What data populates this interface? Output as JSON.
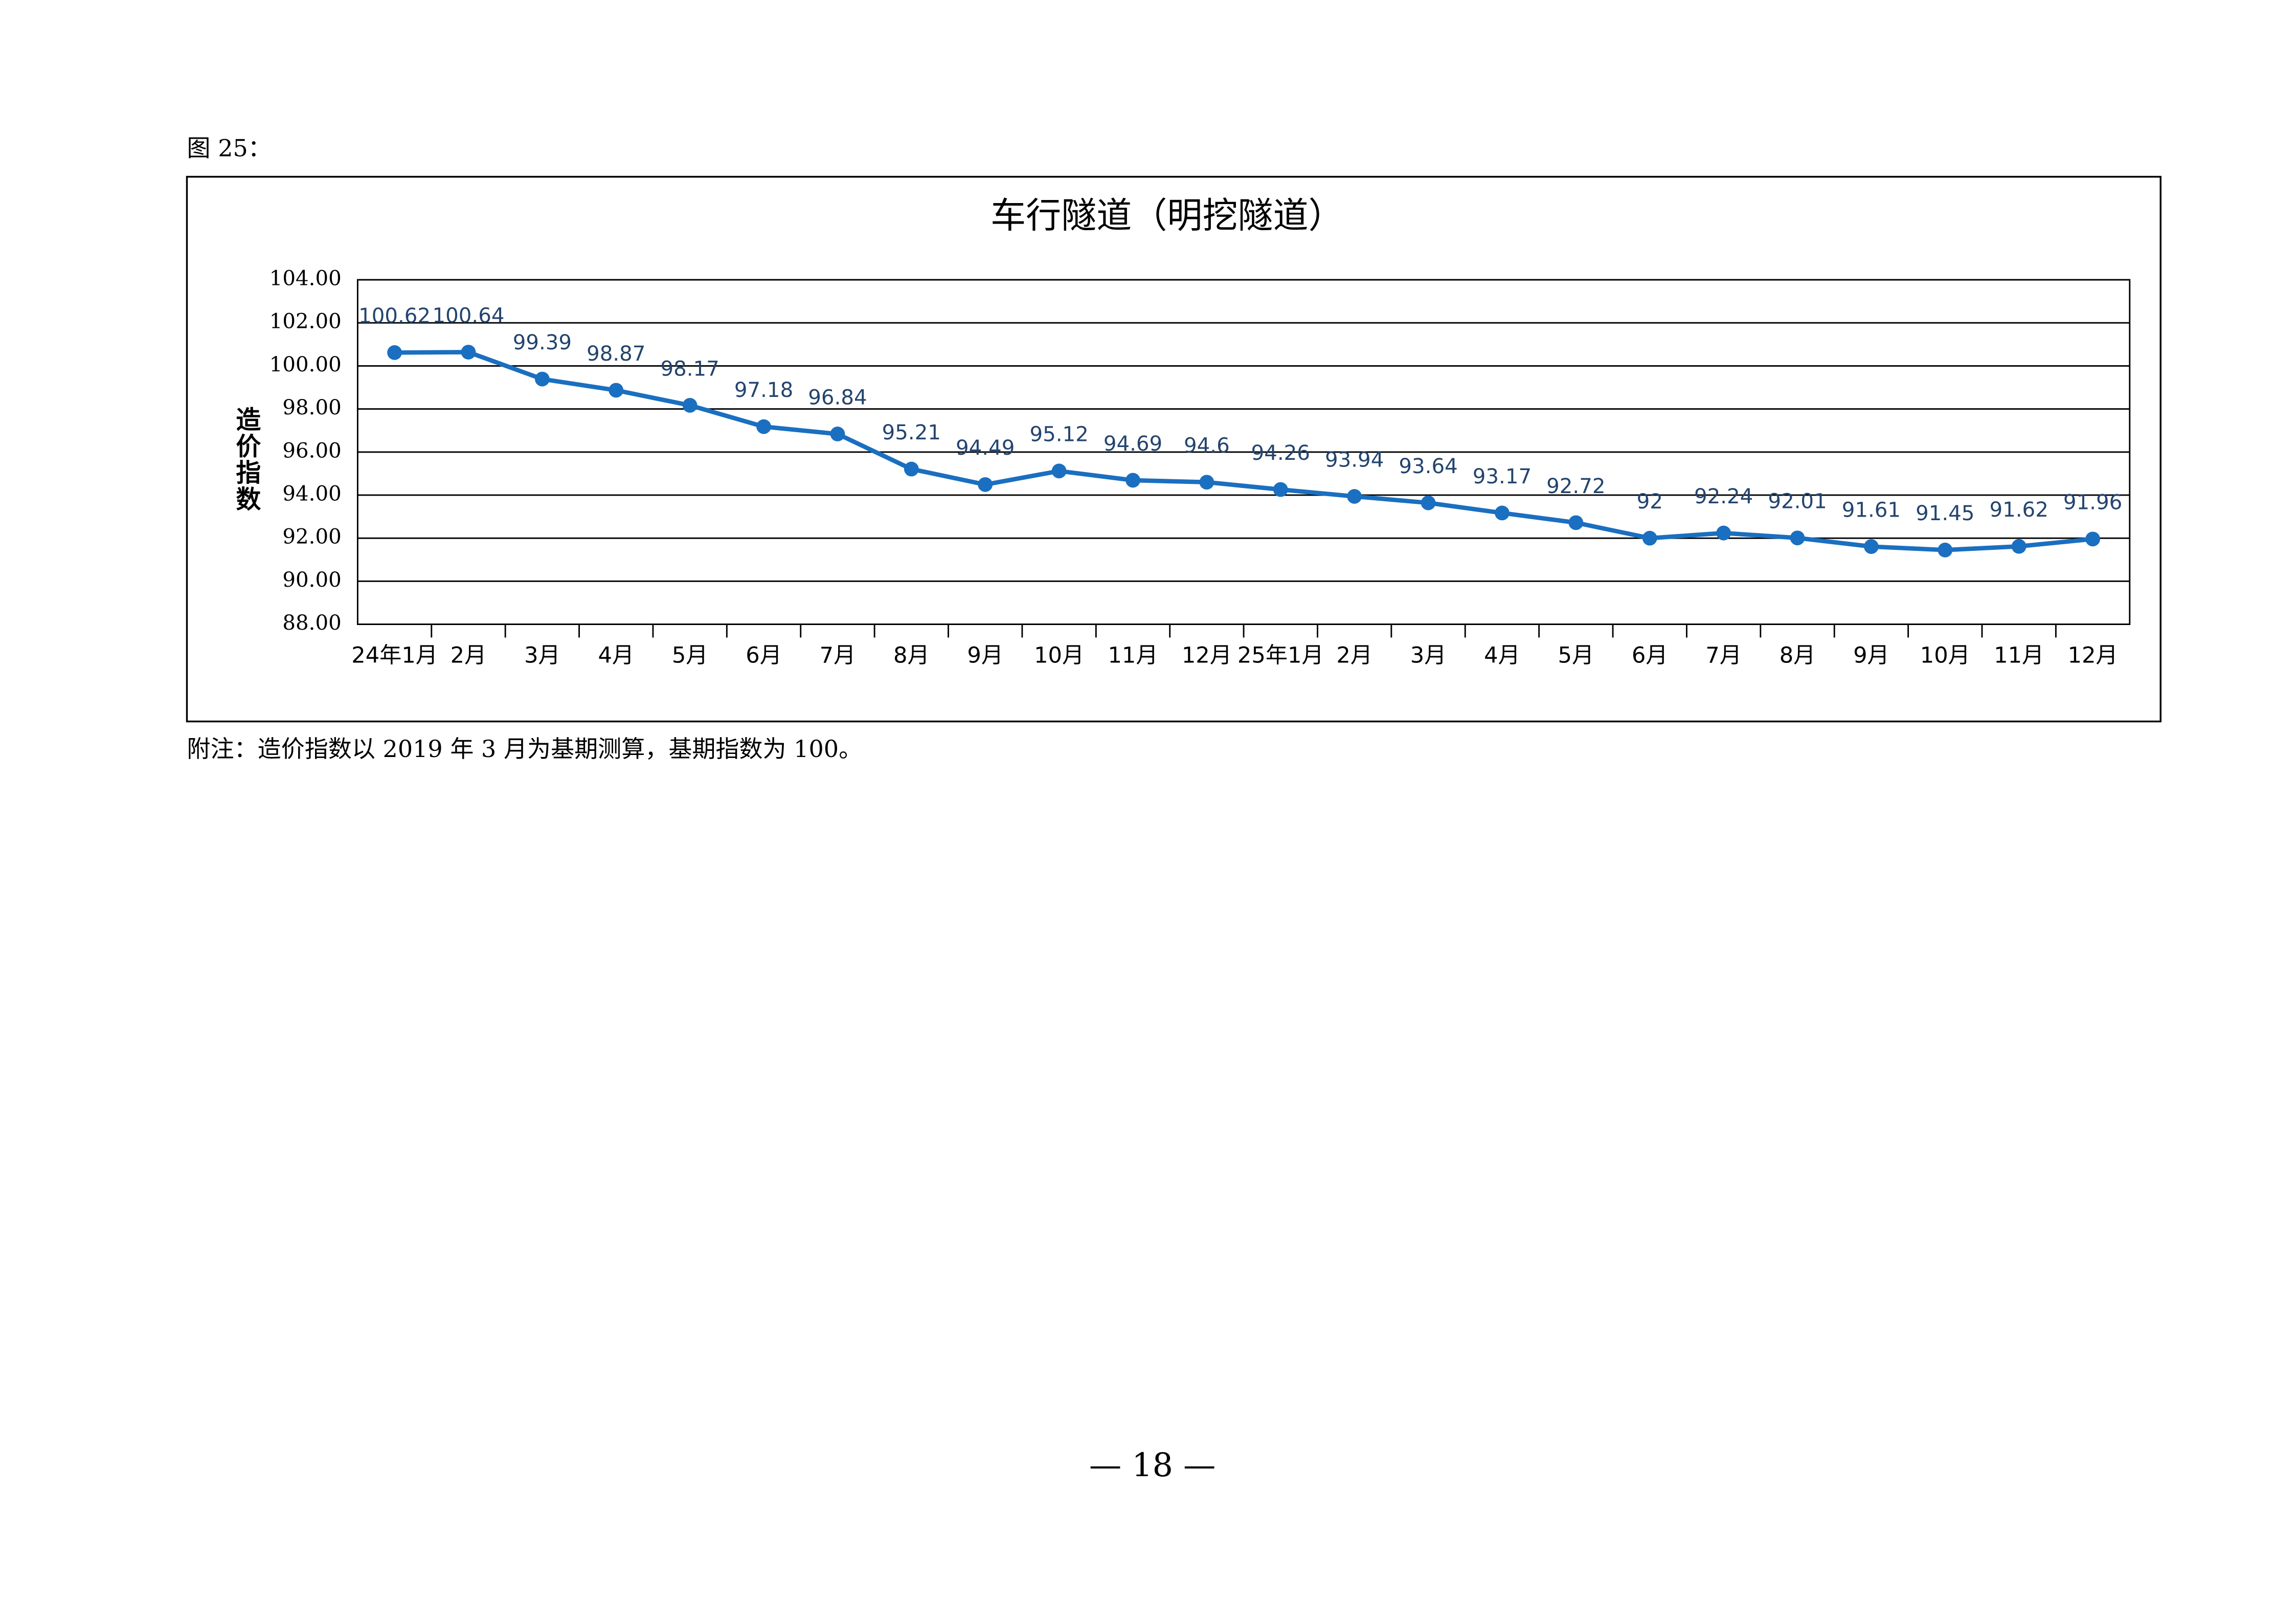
{
  "figure_label": "图 25：",
  "note": "附注：造价指数以 2019 年 3 月为基期测算，基期指数为 100。",
  "page_number": "— 18 —",
  "chart_data": {
    "type": "line",
    "title": "车行隧道（明挖隧道）",
    "y_label": "造价指数",
    "categories": [
      "24年1月",
      "2月",
      "3月",
      "4月",
      "5月",
      "6月",
      "7月",
      "8月",
      "9月",
      "10月",
      "11月",
      "12月",
      "25年1月",
      "2月",
      "3月",
      "4月",
      "5月",
      "6月",
      "7月",
      "8月",
      "9月",
      "10月",
      "11月",
      "12月"
    ],
    "series": [
      {
        "name": "造价指数",
        "color": "#1a6fc0",
        "values": [
          100.62,
          100.64,
          99.39,
          98.87,
          98.17,
          97.18,
          96.84,
          95.21,
          94.49,
          95.12,
          94.69,
          94.6,
          94.26,
          93.94,
          93.64,
          93.17,
          92.72,
          92,
          92.24,
          92.01,
          91.61,
          91.45,
          91.62,
          91.96
        ]
      }
    ],
    "ylim": [
      88,
      104
    ],
    "yticks": [
      {
        "value": 88,
        "label": "88.00"
      },
      {
        "value": 90,
        "label": "90.00"
      },
      {
        "value": 92,
        "label": "92.00"
      },
      {
        "value": 94,
        "label": "94.00"
      },
      {
        "value": 96,
        "label": "96.00"
      },
      {
        "value": 98,
        "label": "98.00"
      },
      {
        "value": 100,
        "label": "100.00"
      },
      {
        "value": 102,
        "label": "102.00"
      },
      {
        "value": 104,
        "label": "104.00"
      }
    ],
    "grid": true
  }
}
